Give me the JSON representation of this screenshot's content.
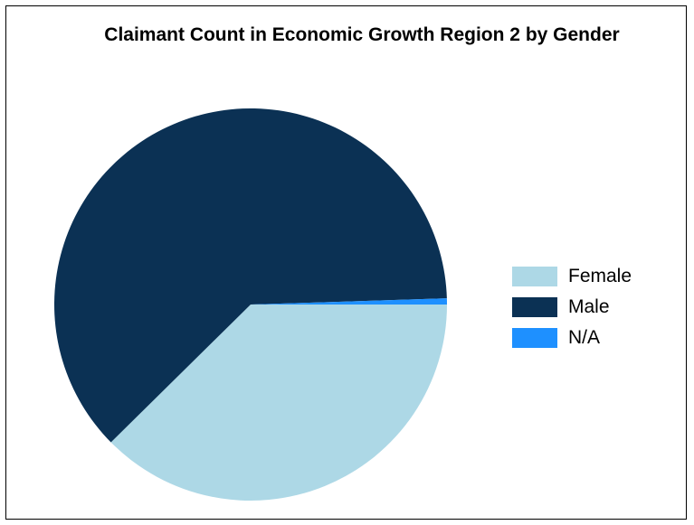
{
  "chart_data": {
    "type": "pie",
    "title": "Claimant Count in Economic Growth Region 2 by Gender",
    "categories": [
      "Female",
      "Male",
      "N/A"
    ],
    "values": [
      37.6,
      61.9,
      0.5
    ],
    "colors": [
      "#add8e6",
      "#0b3154",
      "#1e90ff"
    ],
    "legend_position": "right"
  }
}
